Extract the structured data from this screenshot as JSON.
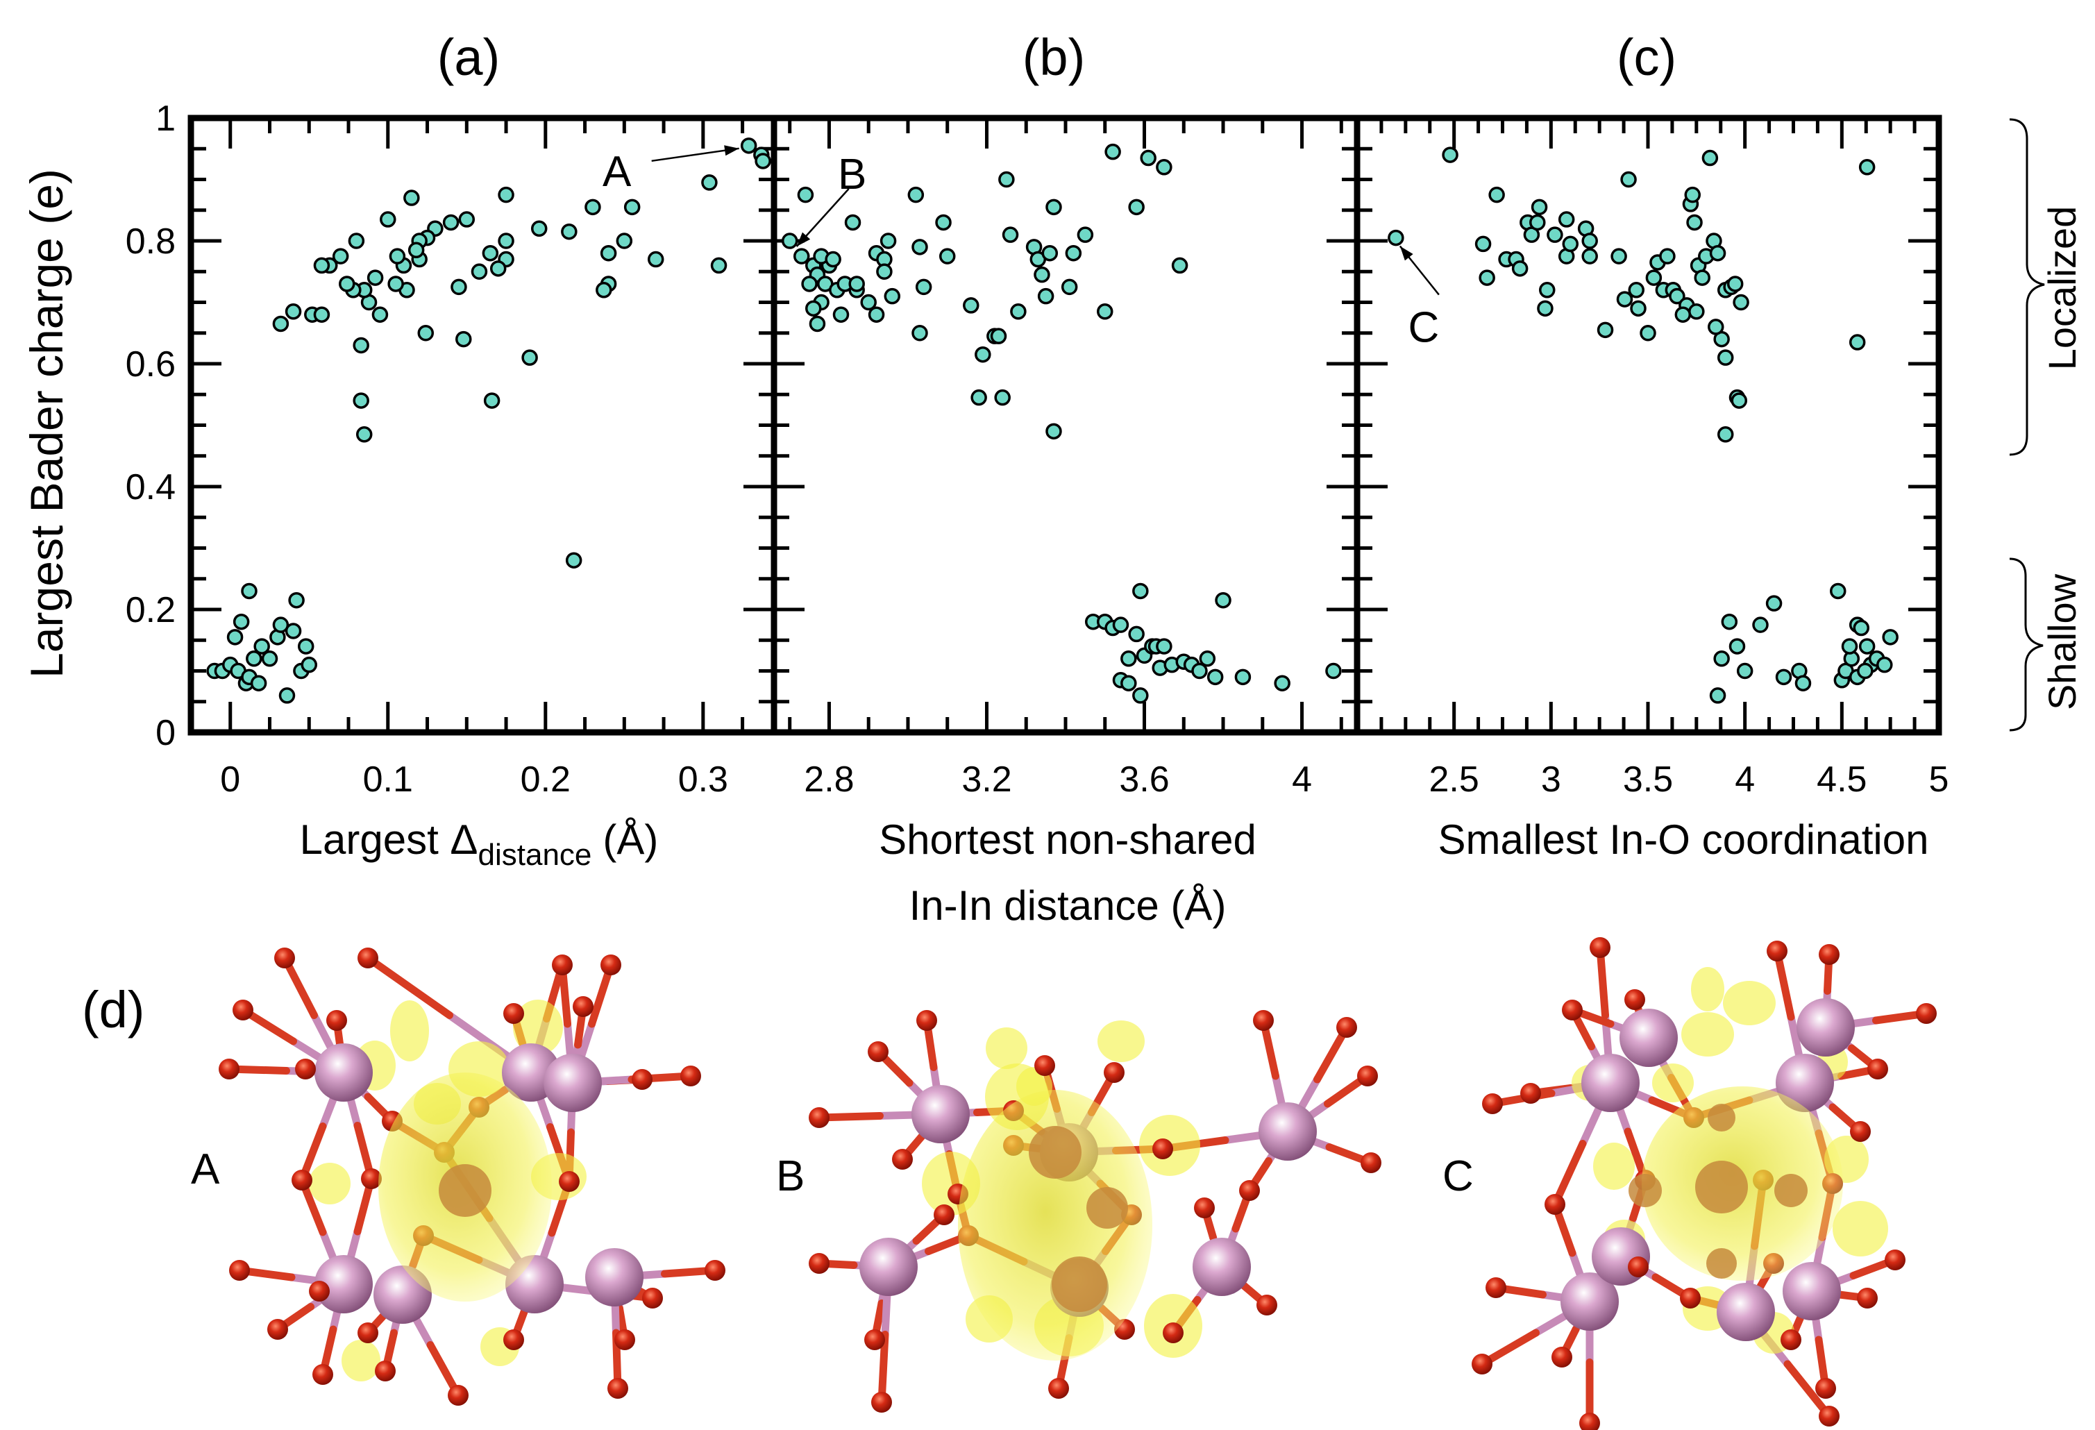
{
  "chart_data": [
    {
      "id": "a",
      "type": "scatter",
      "panel_label": "(a)",
      "xlabel_main": "Largest Δ",
      "xlabel_sub": "distance",
      "xlabel_unit": "(Å)",
      "ylabel": "Largest Bader charge (e)",
      "xlim": [
        -0.025,
        0.345
      ],
      "ylim": [
        0,
        1
      ],
      "xticks": [
        0,
        0.1,
        0.2,
        0.3
      ],
      "xtick_labels": [
        "0",
        "0.1",
        "0.2",
        "0.3"
      ],
      "yticks": [
        0,
        0.2,
        0.4,
        0.6,
        0.8,
        1
      ],
      "ytick_labels": [
        "0",
        "0.2",
        "0.4",
        "0.6",
        "0.8",
        "1"
      ],
      "annotation": {
        "label": "A",
        "point": [
          0.329,
          0.955
        ]
      },
      "points": [
        [
          0.329,
          0.955
        ],
        [
          0.337,
          0.94
        ],
        [
          0.338,
          0.93
        ],
        [
          0.304,
          0.895
        ],
        [
          0.31,
          0.76
        ],
        [
          0.27,
          0.77
        ],
        [
          0.255,
          0.855
        ],
        [
          0.23,
          0.855
        ],
        [
          0.215,
          0.815
        ],
        [
          0.25,
          0.8
        ],
        [
          0.24,
          0.78
        ],
        [
          0.24,
          0.73
        ],
        [
          0.237,
          0.72
        ],
        [
          0.196,
          0.82
        ],
        [
          0.175,
          0.875
        ],
        [
          0.175,
          0.8
        ],
        [
          0.175,
          0.77
        ],
        [
          0.17,
          0.755
        ],
        [
          0.165,
          0.78
        ],
        [
          0.15,
          0.835
        ],
        [
          0.145,
          0.725
        ],
        [
          0.14,
          0.83
        ],
        [
          0.13,
          0.82
        ],
        [
          0.125,
          0.805
        ],
        [
          0.12,
          0.8
        ],
        [
          0.12,
          0.77
        ],
        [
          0.118,
          0.785
        ],
        [
          0.115,
          0.87
        ],
        [
          0.112,
          0.72
        ],
        [
          0.11,
          0.76
        ],
        [
          0.106,
          0.775
        ],
        [
          0.105,
          0.73
        ],
        [
          0.1,
          0.835
        ],
        [
          0.095,
          0.68
        ],
        [
          0.092,
          0.74
        ],
        [
          0.088,
          0.7
        ],
        [
          0.085,
          0.72
        ],
        [
          0.08,
          0.8
        ],
        [
          0.078,
          0.72
        ],
        [
          0.074,
          0.73
        ],
        [
          0.07,
          0.775
        ],
        [
          0.063,
          0.76
        ],
        [
          0.058,
          0.76
        ],
        [
          0.052,
          0.68
        ],
        [
          0.058,
          0.68
        ],
        [
          0.04,
          0.685
        ],
        [
          0.032,
          0.665
        ],
        [
          0.083,
          0.63
        ],
        [
          0.124,
          0.65
        ],
        [
          0.148,
          0.64
        ],
        [
          0.158,
          0.75
        ],
        [
          0.19,
          0.61
        ],
        [
          0.083,
          0.54
        ],
        [
          0.166,
          0.54
        ],
        [
          0.085,
          0.485
        ],
        [
          0.218,
          0.28
        ],
        [
          -0.01,
          0.1
        ],
        [
          -0.005,
          0.1
        ],
        [
          0,
          0.11
        ],
        [
          0.005,
          0.1
        ],
        [
          0.01,
          0.08
        ],
        [
          0.012,
          0.09
        ],
        [
          0.015,
          0.12
        ],
        [
          0.02,
          0.14
        ],
        [
          0.03,
          0.155
        ],
        [
          0.032,
          0.175
        ],
        [
          0.036,
          0.06
        ],
        [
          0.04,
          0.165
        ],
        [
          0.042,
          0.215
        ],
        [
          0.045,
          0.1
        ],
        [
          0.05,
          0.11
        ],
        [
          0.048,
          0.14
        ],
        [
          0.012,
          0.23
        ],
        [
          0.007,
          0.18
        ],
        [
          0.003,
          0.155
        ],
        [
          0.025,
          0.12
        ],
        [
          0.018,
          0.08
        ]
      ]
    },
    {
      "id": "b",
      "type": "scatter",
      "panel_label": "(b)",
      "xlabel_line1": "Shortest non-shared",
      "xlabel_line2": "In-In distance (Å)",
      "xlim": [
        2.66,
        4.14
      ],
      "ylim": [
        0,
        1
      ],
      "xticks": [
        2.8,
        3.2,
        3.6,
        4.0
      ],
      "xtick_labels": [
        "2.8",
        "3.2",
        "3.6",
        "4"
      ],
      "annotation": {
        "label": "B",
        "point": [
          2.7,
          0.8
        ]
      },
      "points": [
        [
          2.7,
          0.8
        ],
        [
          2.74,
          0.875
        ],
        [
          2.73,
          0.775
        ],
        [
          2.76,
          0.76
        ],
        [
          2.77,
          0.745
        ],
        [
          2.79,
          0.73
        ],
        [
          2.8,
          0.76
        ],
        [
          2.78,
          0.7
        ],
        [
          2.76,
          0.69
        ],
        [
          2.77,
          0.665
        ],
        [
          2.82,
          0.72
        ],
        [
          2.83,
          0.68
        ],
        [
          2.86,
          0.83
        ],
        [
          2.87,
          0.72
        ],
        [
          2.9,
          0.7
        ],
        [
          2.92,
          0.78
        ],
        [
          2.94,
          0.77
        ],
        [
          2.94,
          0.75
        ],
        [
          2.95,
          0.8
        ],
        [
          2.96,
          0.71
        ],
        [
          2.92,
          0.68
        ],
        [
          2.75,
          0.73
        ],
        [
          2.78,
          0.775
        ],
        [
          2.81,
          0.77
        ],
        [
          2.84,
          0.73
        ],
        [
          2.87,
          0.73
        ],
        [
          3.02,
          0.875
        ],
        [
          3.03,
          0.79
        ],
        [
          3.04,
          0.725
        ],
        [
          3.03,
          0.65
        ],
        [
          3.09,
          0.83
        ],
        [
          3.1,
          0.775
        ],
        [
          3.16,
          0.695
        ],
        [
          3.18,
          0.545
        ],
        [
          3.19,
          0.615
        ],
        [
          3.22,
          0.645
        ],
        [
          3.23,
          0.645
        ],
        [
          3.25,
          0.9
        ],
        [
          3.26,
          0.81
        ],
        [
          3.24,
          0.545
        ],
        [
          3.28,
          0.685
        ],
        [
          3.32,
          0.79
        ],
        [
          3.33,
          0.77
        ],
        [
          3.34,
          0.745
        ],
        [
          3.36,
          0.78
        ],
        [
          3.37,
          0.855
        ],
        [
          3.41,
          0.725
        ],
        [
          3.42,
          0.78
        ],
        [
          3.45,
          0.81
        ],
        [
          3.5,
          0.685
        ],
        [
          3.37,
          0.49
        ],
        [
          3.52,
          0.945
        ],
        [
          3.58,
          0.855
        ],
        [
          3.61,
          0.935
        ],
        [
          3.65,
          0.92
        ],
        [
          3.69,
          0.76
        ],
        [
          3.35,
          0.71
        ],
        [
          3.47,
          0.18
        ],
        [
          3.5,
          0.18
        ],
        [
          3.52,
          0.17
        ],
        [
          3.54,
          0.085
        ],
        [
          3.56,
          0.12
        ],
        [
          3.58,
          0.16
        ],
        [
          3.59,
          0.23
        ],
        [
          3.6,
          0.125
        ],
        [
          3.62,
          0.14
        ],
        [
          3.63,
          0.14
        ],
        [
          3.64,
          0.105
        ],
        [
          3.65,
          0.14
        ],
        [
          3.67,
          0.11
        ],
        [
          3.7,
          0.115
        ],
        [
          3.72,
          0.11
        ],
        [
          3.74,
          0.1
        ],
        [
          3.76,
          0.12
        ],
        [
          3.78,
          0.09
        ],
        [
          3.8,
          0.215
        ],
        [
          3.85,
          0.09
        ],
        [
          3.95,
          0.08
        ],
        [
          4.08,
          0.1
        ],
        [
          3.59,
          0.06
        ],
        [
          3.56,
          0.08
        ],
        [
          3.54,
          0.175
        ]
      ]
    },
    {
      "id": "c",
      "type": "scatter",
      "panel_label": "(c)",
      "xlabel": "Smallest In-O coordination",
      "xlim": [
        2.0,
        5.0
      ],
      "ylim": [
        0,
        1
      ],
      "xticks": [
        2.5,
        3.0,
        3.5,
        4.0,
        4.5,
        5.0
      ],
      "xtick_labels": [
        "2.5",
        "3",
        "3.5",
        "4",
        "4.5",
        "5"
      ],
      "annotation": {
        "label": "C",
        "point": [
          2.2,
          0.805
        ]
      },
      "points": [
        [
          2.2,
          0.805
        ],
        [
          2.48,
          0.94
        ],
        [
          2.65,
          0.795
        ],
        [
          2.67,
          0.74
        ],
        [
          2.72,
          0.875
        ],
        [
          2.77,
          0.77
        ],
        [
          2.82,
          0.77
        ],
        [
          2.84,
          0.755
        ],
        [
          2.88,
          0.83
        ],
        [
          2.9,
          0.81
        ],
        [
          2.93,
          0.83
        ],
        [
          2.94,
          0.855
        ],
        [
          2.97,
          0.69
        ],
        [
          2.98,
          0.72
        ],
        [
          3.02,
          0.81
        ],
        [
          3.08,
          0.775
        ],
        [
          3.08,
          0.835
        ],
        [
          3.1,
          0.795
        ],
        [
          3.18,
          0.82
        ],
        [
          3.2,
          0.8
        ],
        [
          3.2,
          0.775
        ],
        [
          3.28,
          0.655
        ],
        [
          3.35,
          0.775
        ],
        [
          3.38,
          0.705
        ],
        [
          3.4,
          0.9
        ],
        [
          3.44,
          0.72
        ],
        [
          3.45,
          0.69
        ],
        [
          3.5,
          0.65
        ],
        [
          3.53,
          0.74
        ],
        [
          3.55,
          0.765
        ],
        [
          3.58,
          0.72
        ],
        [
          3.6,
          0.775
        ],
        [
          3.63,
          0.72
        ],
        [
          3.65,
          0.71
        ],
        [
          3.7,
          0.695
        ],
        [
          3.72,
          0.86
        ],
        [
          3.73,
          0.875
        ],
        [
          3.74,
          0.83
        ],
        [
          3.76,
          0.76
        ],
        [
          3.78,
          0.74
        ],
        [
          3.8,
          0.775
        ],
        [
          3.82,
          0.935
        ],
        [
          3.84,
          0.8
        ],
        [
          3.86,
          0.78
        ],
        [
          3.88,
          0.64
        ],
        [
          3.9,
          0.61
        ],
        [
          3.9,
          0.72
        ],
        [
          3.93,
          0.725
        ],
        [
          3.95,
          0.73
        ],
        [
          3.96,
          0.545
        ],
        [
          3.97,
          0.54
        ],
        [
          3.98,
          0.7
        ],
        [
          3.9,
          0.485
        ],
        [
          3.75,
          0.685
        ],
        [
          3.68,
          0.68
        ],
        [
          4.58,
          0.635
        ],
        [
          4.63,
          0.92
        ],
        [
          3.85,
          0.66
        ],
        [
          3.86,
          0.06
        ],
        [
          3.88,
          0.12
        ],
        [
          3.92,
          0.18
        ],
        [
          3.96,
          0.14
        ],
        [
          4.0,
          0.1
        ],
        [
          4.08,
          0.175
        ],
        [
          4.15,
          0.21
        ],
        [
          4.2,
          0.09
        ],
        [
          4.28,
          0.1
        ],
        [
          4.3,
          0.08
        ],
        [
          4.48,
          0.23
        ],
        [
          4.5,
          0.085
        ],
        [
          4.52,
          0.1
        ],
        [
          4.55,
          0.12
        ],
        [
          4.58,
          0.175
        ],
        [
          4.6,
          0.17
        ],
        [
          4.63,
          0.14
        ],
        [
          4.65,
          0.11
        ],
        [
          4.68,
          0.12
        ],
        [
          4.72,
          0.11
        ],
        [
          4.75,
          0.155
        ],
        [
          4.54,
          0.14
        ],
        [
          4.58,
          0.09
        ],
        [
          4.62,
          0.1
        ]
      ]
    }
  ],
  "brackets": {
    "localized_label": "Localized",
    "shallow_label": "Shallow",
    "localized_range": [
      0.45,
      1.0
    ],
    "shallow_range": [
      0.0,
      0.3
    ]
  },
  "structures": {
    "panel_label": "(d)",
    "labels": [
      "A",
      "B",
      "C"
    ]
  },
  "colors": {
    "marker_fill": "#6fd8c6",
    "indium": "#c98fbd",
    "oxygen": "#d42a14",
    "bond_in": "#c78ab7",
    "bond_o": "#d73b22",
    "isosurface": "#f2f03a"
  }
}
